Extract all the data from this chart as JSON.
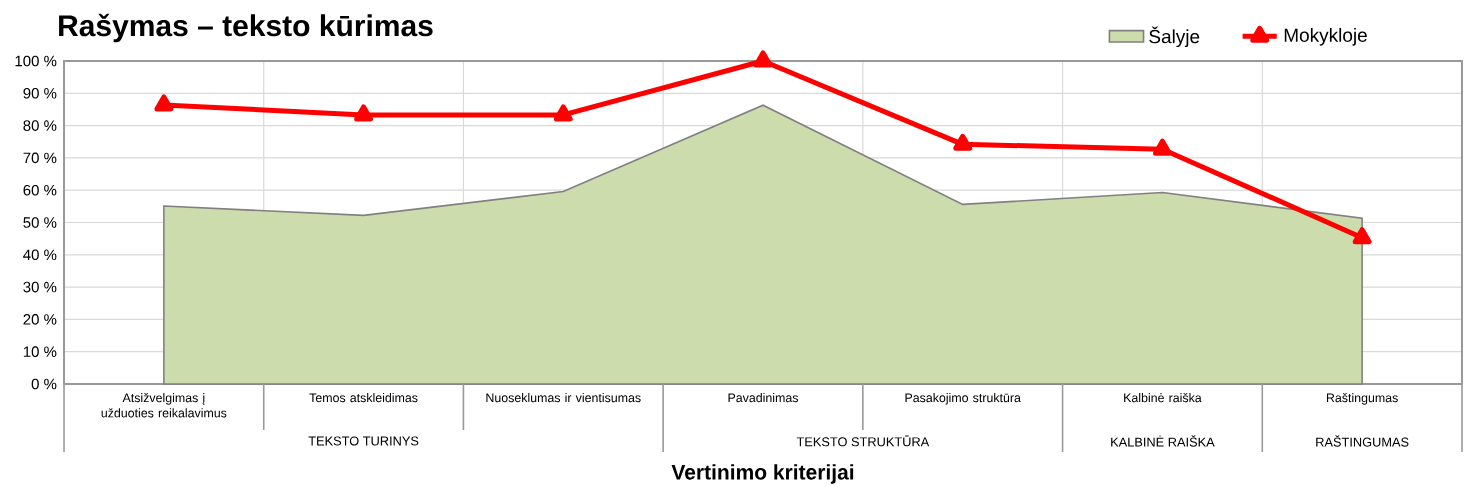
{
  "chart_data": {
    "type": "area",
    "title": "Rašymas – teksto kūrimas",
    "xlabel": "Vertinimo kriterijai",
    "categories": [
      "Atsižvelgimas į užduoties reikalavimus",
      "Temos atskleidimas",
      "Nuoseklumas ir vientisumas",
      "Pavadinimas",
      "Pasakojimo struktūra",
      "Kalbinė raiška",
      "Raštingumas"
    ],
    "series": [
      {
        "name": "Šalyje",
        "color": "#cddcac",
        "values": [
          55.1,
          52.2,
          59.6,
          86.3,
          55.6,
          59.3,
          51.3
        ]
      },
      {
        "name": "Mokykloje",
        "type": "line",
        "color": "#ff0000",
        "marker": "triangle",
        "values": [
          86.4,
          83.3,
          83.3,
          100,
          74.2,
          72.7,
          45.3
        ]
      }
    ],
    "ylim": [
      0,
      100
    ],
    "yticks": [
      {
        "value": 0,
        "label": "0 %"
      },
      {
        "value": 10,
        "label": "10 %"
      },
      {
        "value": 20,
        "label": "20 %"
      },
      {
        "value": 30,
        "label": "30 %"
      },
      {
        "value": 40,
        "label": "40 %"
      },
      {
        "value": 50,
        "label": "50 %"
      },
      {
        "value": 60,
        "label": "60 %"
      },
      {
        "value": 70,
        "label": "70 %"
      },
      {
        "value": 80,
        "label": "80 %"
      },
      {
        "value": 90,
        "label": "90 %"
      },
      {
        "value": 100,
        "label": "100 %"
      }
    ],
    "grid": true,
    "legend": "top right",
    "annotations": [
      "TEKSTO TURINYS",
      "TEKSTO STRUKTŪRA",
      "KALBINĖ RAIŠKA",
      "RAŠTINGUMAS"
    ]
  }
}
